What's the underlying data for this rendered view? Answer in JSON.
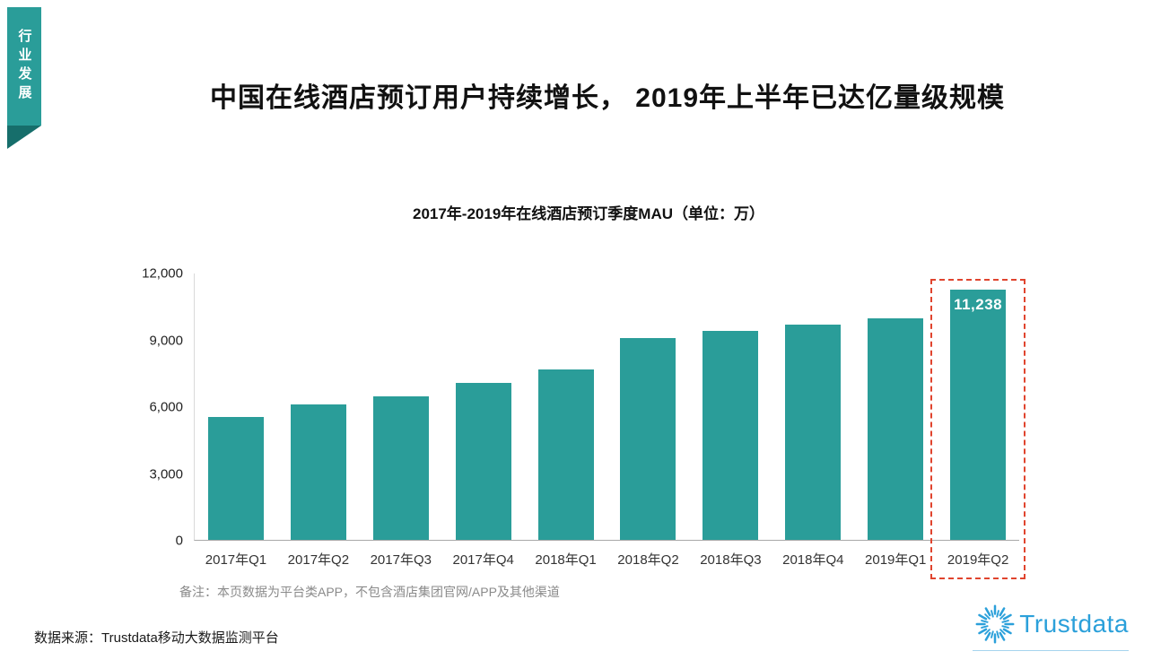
{
  "sidebar_tab": {
    "label": "行业发展"
  },
  "page_title": "中国在线酒店预订用户持续增长， 2019年上半年已达亿量级规模",
  "chart_data": {
    "type": "bar",
    "title": "2017年-2019年在线酒店预订季度MAU（单位：万）",
    "categories": [
      "2017年Q1",
      "2017年Q2",
      "2017年Q3",
      "2017年Q4",
      "2018年Q1",
      "2018年Q2",
      "2018年Q3",
      "2018年Q4",
      "2019年Q1",
      "2019年Q2"
    ],
    "values": [
      5500,
      6100,
      6450,
      7050,
      7650,
      9050,
      9400,
      9650,
      9950,
      11238
    ],
    "ylim": [
      0,
      12000
    ],
    "y_ticks": [
      "12,000",
      "9,000",
      "6,000",
      "3,000",
      "0"
    ],
    "xlabel": "",
    "ylabel": "",
    "grid": false,
    "legend": false,
    "bar_color": "#2a9d99",
    "highlight": {
      "index": 9,
      "label": "11,238",
      "box_color": "#e0442e"
    }
  },
  "footnote": "备注：本页数据为平台类APP，不包含酒店集团官网/APP及其他渠道",
  "data_source": "数据来源：Trustdata移动大数据监测平台",
  "logo": {
    "text": "Trustdata",
    "icon": "sunburst-icon"
  },
  "colors": {
    "teal": "#2a9d99",
    "teal_dark": "#166e6b",
    "highlight_red": "#e0442e",
    "logo_blue": "#2ba0da"
  }
}
